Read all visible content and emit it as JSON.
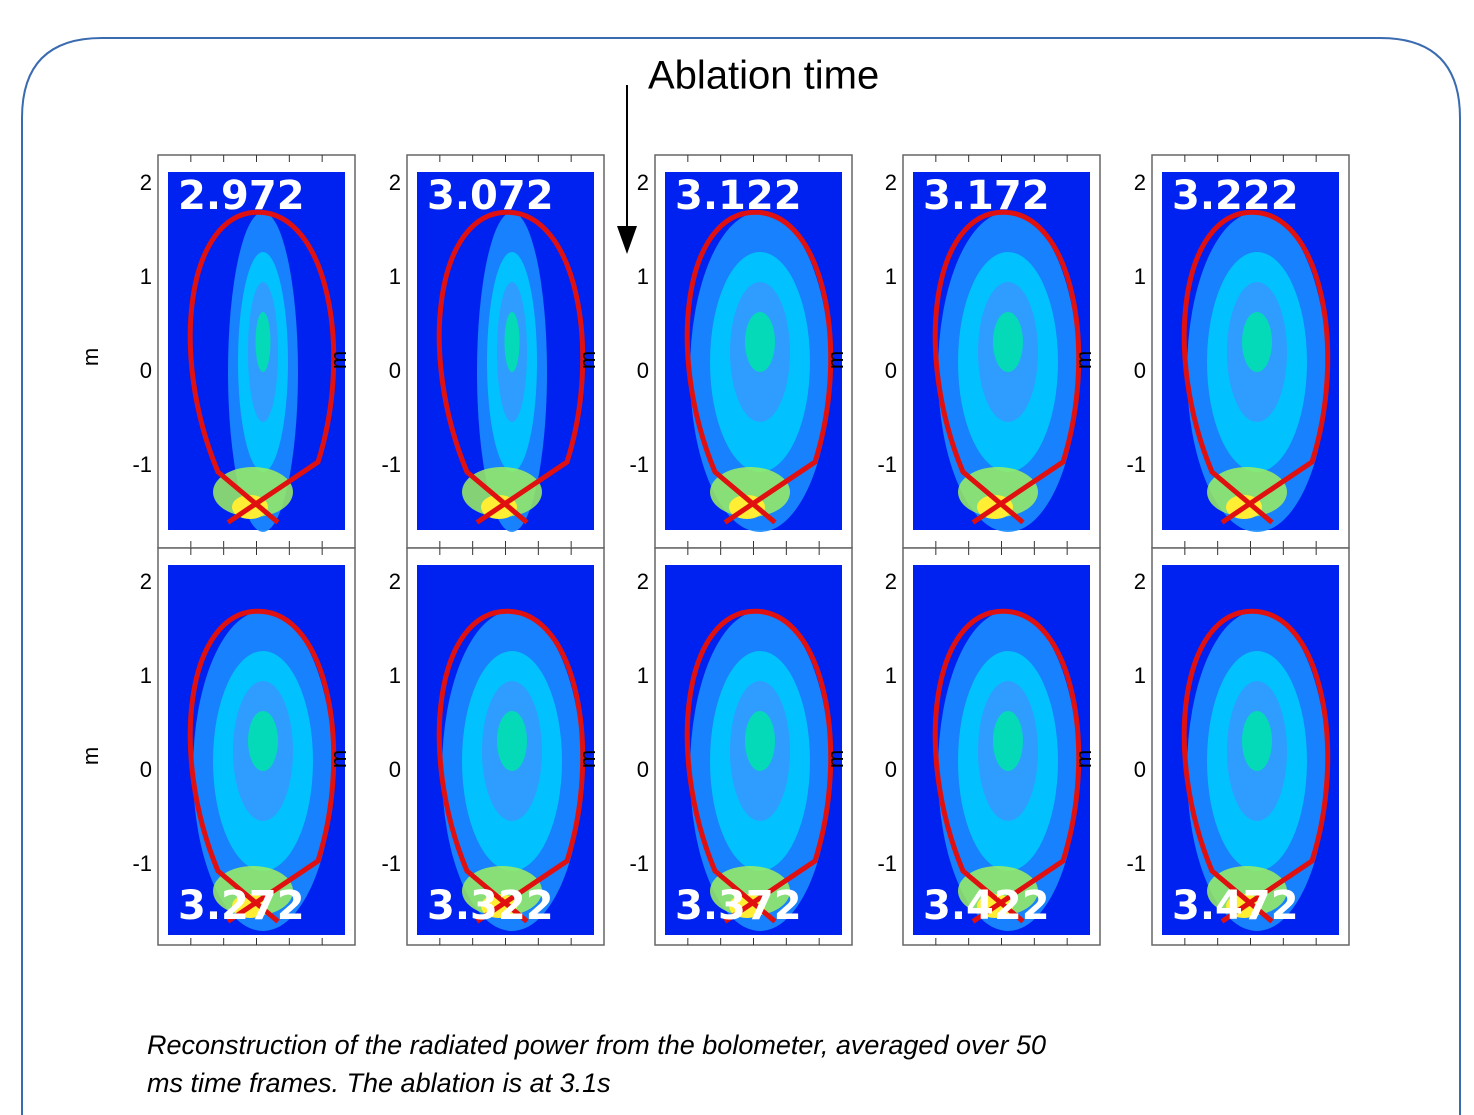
{
  "annotation": "Ablation time",
  "axis": {
    "label": "m",
    "ticks": [
      2,
      1,
      0,
      -1
    ]
  },
  "panels": [
    {
      "time": "2.972"
    },
    {
      "time": "3.072"
    },
    {
      "time": "3.122"
    },
    {
      "time": "3.172"
    },
    {
      "time": "3.222"
    },
    {
      "time": "3.272"
    },
    {
      "time": "3.322"
    },
    {
      "time": "3.372"
    },
    {
      "time": "3.422"
    },
    {
      "time": "3.472"
    }
  ],
  "caption": {
    "lines": [
      "Reconstruction of the radiated power from the bolometer, averaged over 50",
      "ms time frames. The ablation is at 3.1s"
    ]
  }
}
